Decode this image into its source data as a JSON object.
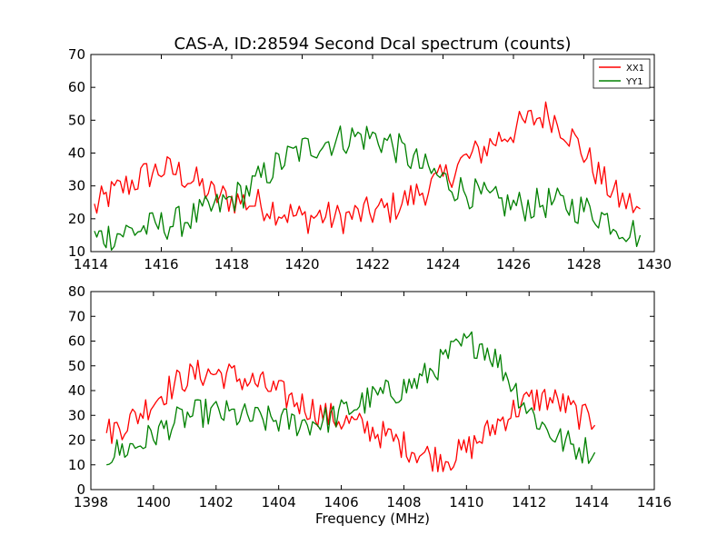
{
  "chart_data": [
    {
      "type": "line",
      "title": "CAS-A, ID:28594 Second Dcal spectrum (counts)",
      "xlabel": "",
      "ylabel": "",
      "xlim": [
        1414,
        1430
      ],
      "ylim": [
        10,
        70
      ],
      "xticks": [
        "1414",
        "1416",
        "1418",
        "1420",
        "1422",
        "1424",
        "1426",
        "1428",
        "1430"
      ],
      "yticks": [
        "10",
        "20",
        "30",
        "40",
        "50",
        "60",
        "70"
      ],
      "legend": {
        "placement": "top-right",
        "entries": [
          "XX1",
          "YY1"
        ]
      },
      "grid": false,
      "series": [
        {
          "name": "XX1",
          "color": "#ff0000",
          "x": [
            1414.1,
            1414.5,
            1415.0,
            1415.5,
            1416.0,
            1416.5,
            1417.0,
            1417.5,
            1418.0,
            1418.5,
            1419.0,
            1419.5,
            1420.0,
            1420.5,
            1421.0,
            1421.5,
            1422.0,
            1422.5,
            1423.0,
            1423.5,
            1424.0,
            1424.5,
            1425.0,
            1425.5,
            1426.0,
            1426.5,
            1427.0,
            1427.5,
            1428.0,
            1428.5,
            1429.0,
            1429.6
          ],
          "values": [
            23,
            27,
            30,
            33,
            35,
            34,
            31,
            27,
            26,
            25,
            24,
            22,
            20,
            21,
            20,
            21,
            22,
            23,
            26,
            29,
            32,
            37,
            40,
            44,
            47,
            50,
            52,
            47,
            40,
            32,
            26,
            23
          ]
        },
        {
          "name": "YY1",
          "color": "#008000",
          "x": [
            1414.1,
            1414.5,
            1415.0,
            1415.5,
            1416.0,
            1416.5,
            1417.0,
            1417.5,
            1418.0,
            1418.5,
            1419.0,
            1419.5,
            1420.0,
            1420.5,
            1421.0,
            1421.5,
            1422.0,
            1422.5,
            1423.0,
            1423.5,
            1424.0,
            1424.5,
            1425.0,
            1425.5,
            1426.0,
            1426.5,
            1427.0,
            1427.5,
            1428.0,
            1428.5,
            1429.0,
            1429.6
          ],
          "values": [
            14,
            15,
            16,
            17,
            18,
            19,
            21,
            23,
            26,
            29,
            34,
            38,
            41,
            43,
            44,
            45,
            45,
            43,
            39,
            35,
            32,
            29,
            27,
            25,
            24,
            24,
            25,
            24,
            23,
            21,
            18,
            15
          ]
        }
      ]
    },
    {
      "type": "line",
      "title": "",
      "xlabel": "Frequency (MHz)",
      "ylabel": "",
      "xlim": [
        1398,
        1416
      ],
      "ylim": [
        0,
        80
      ],
      "xticks": [
        "1398",
        "1400",
        "1402",
        "1404",
        "1406",
        "1408",
        "1410",
        "1412",
        "1414",
        "1416"
      ],
      "yticks": [
        "0",
        "10",
        "20",
        "30",
        "40",
        "50",
        "60",
        "70",
        "80"
      ],
      "grid": false,
      "series": [
        {
          "name": "XX1",
          "color": "#ff0000",
          "x": [
            1398.5,
            1399.0,
            1399.5,
            1400.0,
            1400.5,
            1401.0,
            1401.5,
            1402.0,
            1402.5,
            1403.0,
            1403.5,
            1404.0,
            1404.5,
            1405.0,
            1405.5,
            1406.0,
            1406.5,
            1407.0,
            1407.5,
            1408.0,
            1408.5,
            1409.0,
            1409.5,
            1410.0,
            1410.5,
            1411.0,
            1411.5,
            1412.0,
            1412.5,
            1413.0,
            1413.5,
            1414.1
          ],
          "values": [
            23,
            26,
            30,
            36,
            41,
            45,
            47,
            47,
            46,
            44,
            42,
            39,
            36,
            33,
            30,
            28,
            26,
            24,
            21,
            18,
            15,
            13,
            13,
            16,
            21,
            27,
            32,
            36,
            37,
            35,
            31,
            26
          ]
        },
        {
          "name": "YY1",
          "color": "#008000",
          "x": [
            1398.5,
            1399.0,
            1399.5,
            1400.0,
            1400.5,
            1401.0,
            1401.5,
            1402.0,
            1402.5,
            1403.0,
            1403.5,
            1404.0,
            1404.5,
            1405.0,
            1405.5,
            1406.0,
            1406.5,
            1407.0,
            1407.5,
            1408.0,
            1408.5,
            1409.0,
            1409.5,
            1410.0,
            1410.5,
            1411.0,
            1411.5,
            1412.0,
            1412.5,
            1413.0,
            1413.5,
            1414.1
          ],
          "values": [
            14,
            16,
            18,
            22,
            26,
            29,
            31,
            31,
            30,
            29,
            28,
            28,
            27,
            27,
            28,
            31,
            34,
            37,
            39,
            41,
            44,
            49,
            55,
            59,
            59,
            52,
            42,
            32,
            25,
            20,
            17,
            15
          ]
        }
      ]
    }
  ]
}
